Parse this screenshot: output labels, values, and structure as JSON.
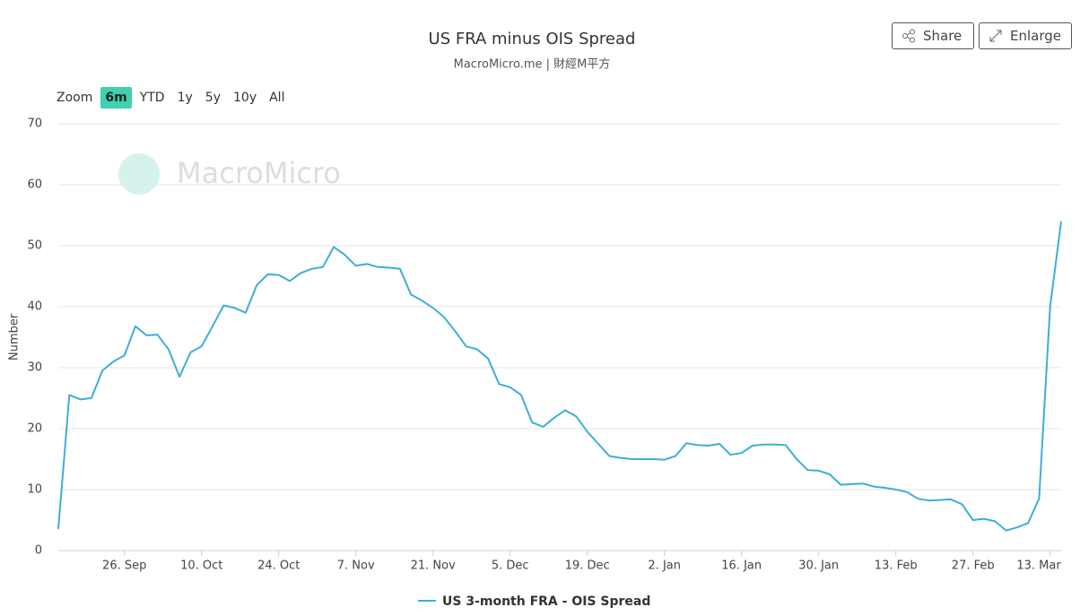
{
  "chart_data": {
    "type": "line",
    "title": "US FRA minus OIS Spread",
    "subtitle": "MacroMicro.me | 財經M平方",
    "y_label": "Number",
    "watermark": "MacroMicro",
    "zoom_label": "Zoom",
    "zoom_ranges": [
      "6m",
      "YTD",
      "1y",
      "5y",
      "10y",
      "All"
    ],
    "buttons": [
      "Share",
      "Enlarge"
    ],
    "ylim": [
      0,
      70
    ],
    "yticks": [
      0,
      10,
      20,
      30,
      40,
      50,
      60,
      70
    ],
    "grid": true,
    "categories": [
      null,
      null,
      null,
      null,
      null,
      null,
      "26. Sep",
      null,
      null,
      null,
      null,
      null,
      null,
      "10. Oct",
      null,
      null,
      null,
      null,
      null,
      null,
      "24. Oct",
      null,
      null,
      null,
      null,
      null,
      null,
      "7. Nov",
      null,
      null,
      null,
      null,
      null,
      null,
      "21. Nov",
      null,
      null,
      null,
      null,
      null,
      null,
      "5. Dec",
      null,
      null,
      null,
      null,
      null,
      null,
      "19. Dec",
      null,
      null,
      null,
      null,
      null,
      null,
      "2. Jan",
      null,
      null,
      null,
      null,
      null,
      null,
      "16. Jan",
      null,
      null,
      null,
      null,
      null,
      null,
      "30. Jan",
      null,
      null,
      null,
      null,
      null,
      null,
      "13. Feb",
      null,
      null,
      null,
      null,
      null,
      null,
      "27. Feb",
      null,
      null,
      null,
      null,
      null,
      null,
      "13. Mar",
      null
    ],
    "series": [
      {
        "name": "US 3-month FRA - OIS Spread",
        "color": "#3eaed6",
        "values": [
          3.5,
          25.5,
          24.8,
          25,
          29.5,
          31,
          32,
          36.8,
          35.3,
          35.4,
          33,
          28.5,
          32.5,
          33.5,
          36.8,
          40.2,
          39.8,
          39,
          43.5,
          45.3,
          45.2,
          44.2,
          45.5,
          46.2,
          46.5,
          49.8,
          48.5,
          46.7,
          47,
          46.5,
          46.4,
          46.2,
          42,
          41,
          39.8,
          38.3,
          36,
          33.5,
          33,
          31.5,
          27.3,
          26.8,
          25.5,
          21,
          20.3,
          21.8,
          23,
          22,
          19.5,
          17.5,
          15.5,
          15.2,
          15,
          15,
          15,
          14.9,
          15.5,
          17.6,
          17.3,
          17.2,
          17.5,
          15.7,
          16,
          17.2,
          17.4,
          17.4,
          17.3,
          15,
          13.2,
          13.1,
          12.5,
          10.8,
          10.9,
          11,
          10.5,
          10.3,
          10,
          9.6,
          8.5,
          8.2,
          8.3,
          8.4,
          7.6,
          5,
          5.2,
          4.8,
          3.3,
          3.8,
          4.5,
          8.5,
          40,
          54
        ]
      }
    ]
  }
}
